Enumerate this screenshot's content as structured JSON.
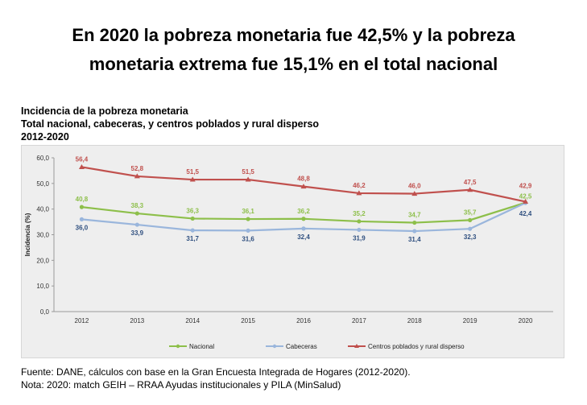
{
  "headline": {
    "line1": "En 2020 la pobreza monetaria fue 42,5% y la pobreza",
    "line2": "monetaria extrema fue 15,1% en el total nacional"
  },
  "chart_heading": {
    "line1": "Incidencia de la pobreza monetaria",
    "line2": "Total nacional, cabeceras, y centros poblados y rural disperso",
    "line3": "2012-2020"
  },
  "chart_data": {
    "type": "line",
    "title": "Incidencia de la pobreza monetaria",
    "xlabel": "",
    "ylabel": "Incidencia (%)",
    "ylim": [
      0,
      60
    ],
    "yticks": [
      "0,0",
      "10,0",
      "20,0",
      "30,0",
      "40,0",
      "50,0",
      "60,0"
    ],
    "grid": false,
    "legend_position": "bottom",
    "categories": [
      "2012",
      "2013",
      "2014",
      "2015",
      "2016",
      "2017",
      "2018",
      "2019",
      "2020"
    ],
    "series": [
      {
        "name": "Nacional",
        "color": "#8dbf4a",
        "marker": "circle",
        "label_position": "above",
        "values": [
          40.8,
          38.3,
          36.3,
          36.1,
          36.2,
          35.2,
          34.7,
          35.7,
          42.5
        ],
        "labels": [
          "40,8",
          "38,3",
          "36,3",
          "36,1",
          "36,2",
          "35,2",
          "34,7",
          "35,7",
          "42,5"
        ]
      },
      {
        "name": "Cabeceras",
        "color": "#9ab6dc",
        "marker": "circle",
        "label_position": "below",
        "values": [
          36.0,
          33.9,
          31.7,
          31.6,
          32.4,
          31.9,
          31.4,
          32.3,
          42.4
        ],
        "labels": [
          "36,0",
          "33,9",
          "31,7",
          "31,6",
          "32,4",
          "31,9",
          "31,4",
          "32,3",
          "42,4"
        ]
      },
      {
        "name": "Centros poblados y rural disperso",
        "color": "#c0504d",
        "marker": "triangle",
        "label_position": "above",
        "values": [
          56.4,
          52.8,
          51.5,
          51.5,
          48.8,
          46.2,
          46.0,
          47.5,
          42.9
        ],
        "labels": [
          "56,4",
          "52,8",
          "51,5",
          "51,5",
          "48,8",
          "46,2",
          "46,0",
          "47,5",
          "42,9"
        ]
      }
    ],
    "label_colors": {
      "Nacional": "#8dbf4a",
      "Cabeceras": "#2f4f7f",
      "Centros poblados y rural disperso": "#c0504d"
    }
  },
  "footnotes": {
    "source": "Fuente: DANE, cálculos con base en la Gran Encuesta Integrada de Hogares (2012-2020).",
    "note": "Nota: 2020: match GEIH – RRAA Ayudas institucionales y PILA (MinSalud)"
  }
}
